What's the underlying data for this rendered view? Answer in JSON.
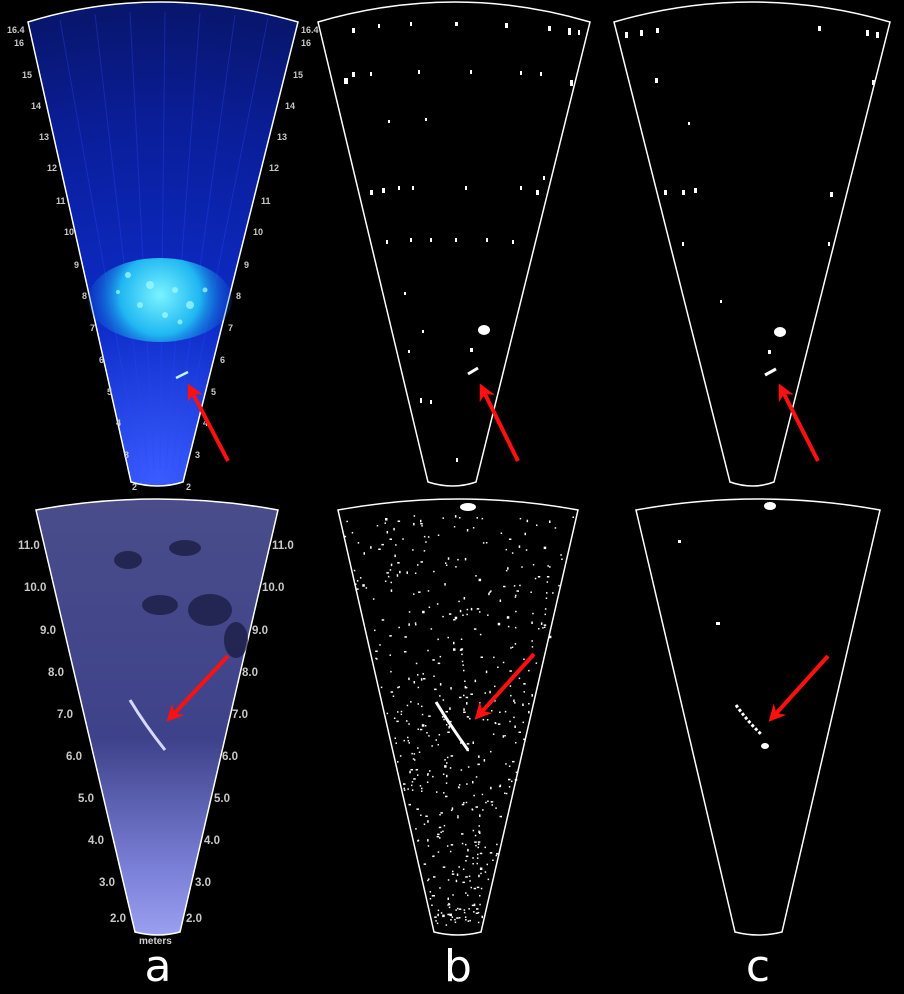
{
  "panels": [
    {
      "label": "a"
    },
    {
      "label": "b"
    },
    {
      "label": "c"
    }
  ],
  "range_ticks_top": [
    "16.4",
    "16",
    "15",
    "14",
    "13",
    "12",
    "11",
    "10",
    "9",
    "8",
    "7",
    "6",
    "5",
    "4",
    "3",
    "2"
  ],
  "range_ticks_bottom": [
    "11.0",
    "10.0",
    "9.0",
    "8.0",
    "7.0",
    "6.0",
    "5.0",
    "4.0",
    "3.0",
    "2.0"
  ],
  "range_units": "meters",
  "colors": {
    "background": "#000000",
    "sonar_top": "#0a2ab8",
    "sonar_highlight": "#2fd6ff",
    "sonar_bottom": "#7b7fd6",
    "fan_outline": "#ffffff",
    "arrow": "#ff1010",
    "segmentation": "#ffffff"
  }
}
